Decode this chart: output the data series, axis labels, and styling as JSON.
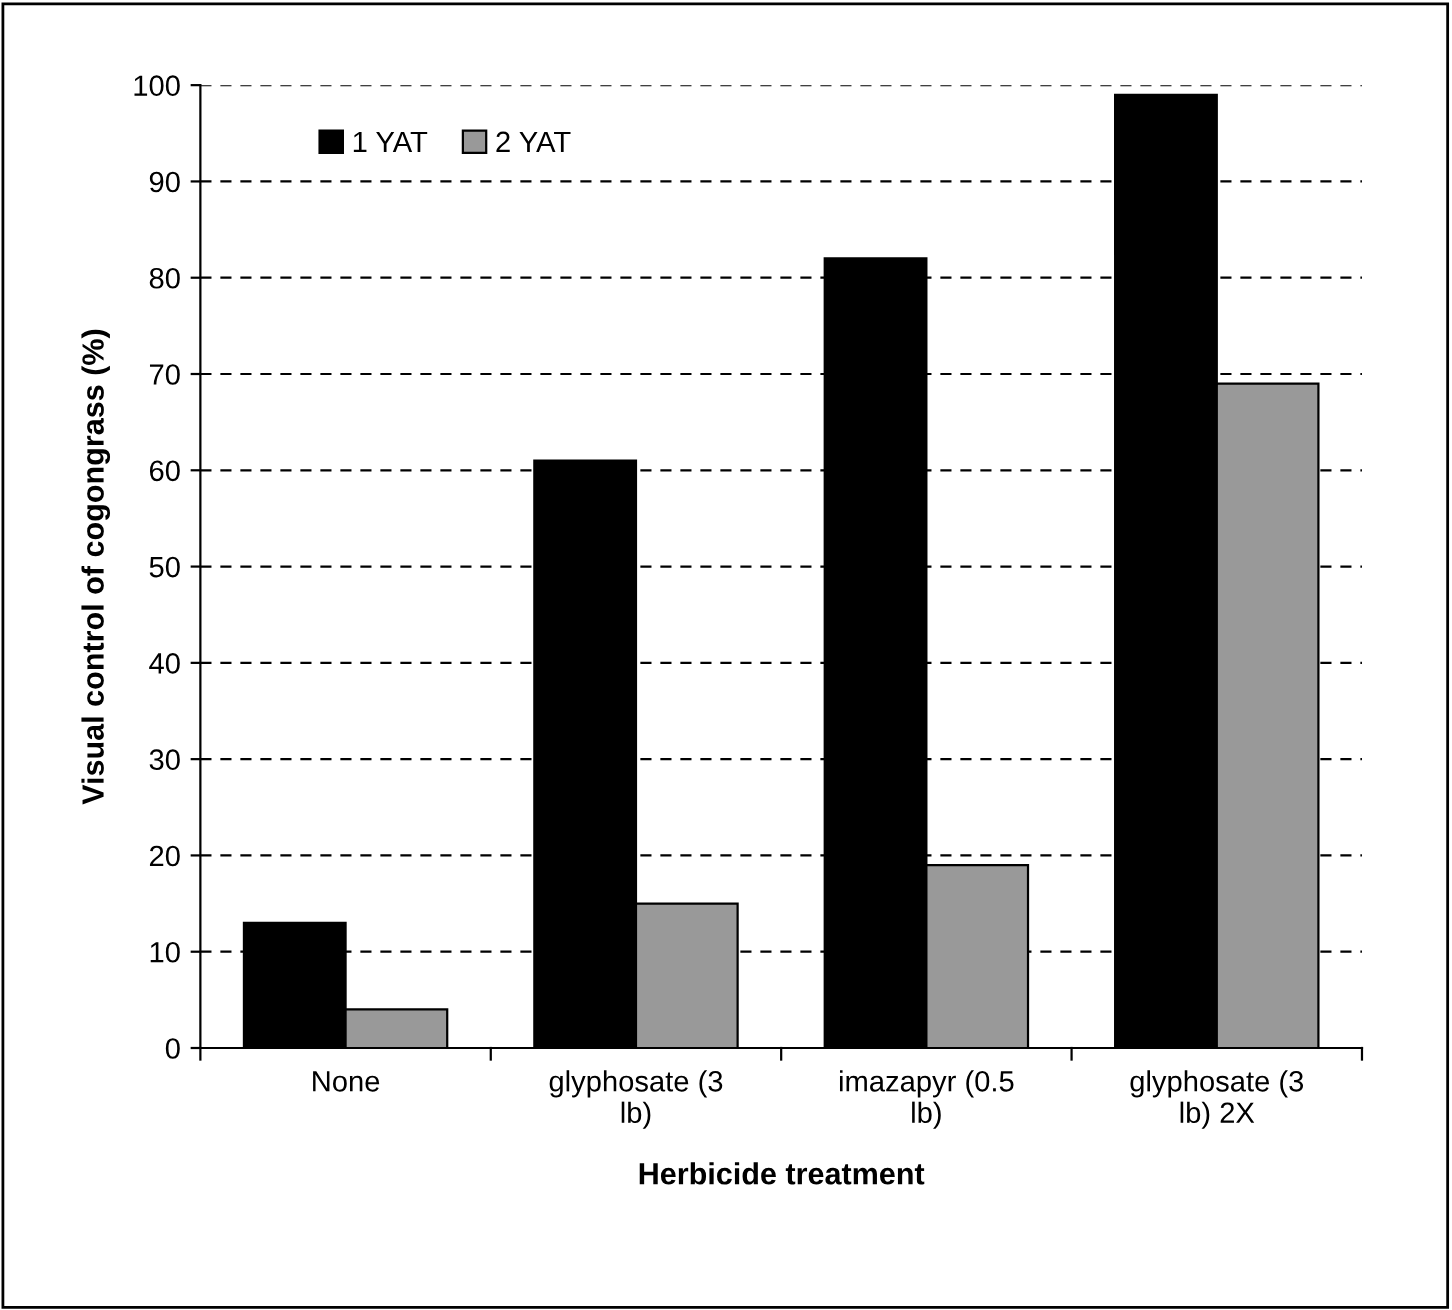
{
  "chart_data": {
    "type": "bar",
    "xlabel": "Herbicide treatment",
    "ylabel": "Visual control of cogongrass (%)",
    "categories": [
      "None",
      "glyphosate (3\nlb)",
      "imazapyr (0.5\nlb)",
      "glyphosate (3\nlb) 2X"
    ],
    "series": [
      {
        "name": "1 YAT",
        "color": "#000000",
        "values": [
          13,
          61,
          82,
          99
        ]
      },
      {
        "name": "2 YAT",
        "color": "#999999",
        "values": [
          4,
          15,
          19,
          69
        ]
      }
    ],
    "ylim": [
      0,
      100
    ],
    "yticks": [
      0,
      10,
      20,
      30,
      40,
      50,
      60,
      70,
      80,
      90,
      100
    ],
    "grid": "y",
    "legend": "top left"
  }
}
